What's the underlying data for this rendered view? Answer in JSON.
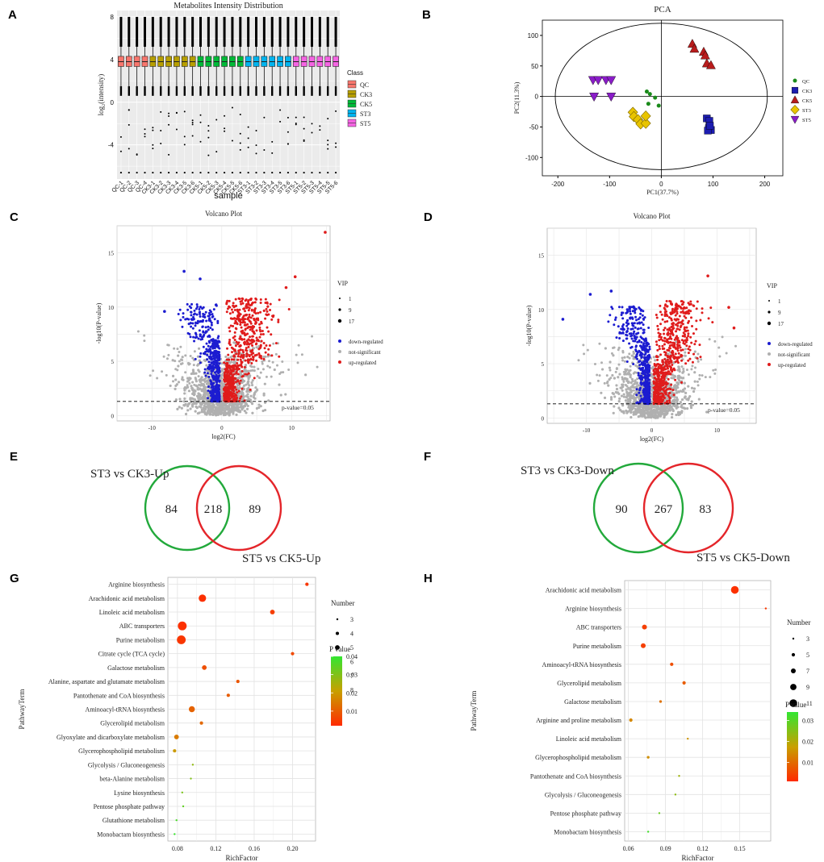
{
  "panel_labels": [
    "A",
    "B",
    "C",
    "D",
    "E",
    "F",
    "G",
    "H"
  ],
  "chart_data": [
    {
      "panel": "A",
      "type": "box",
      "title": "Metabolites Intensity Distribution",
      "xlabel": "sample",
      "ylabel": "log₂(intensity)",
      "ylim": [
        -7.2,
        8.6
      ],
      "yticks": [
        -4,
        0,
        4,
        8
      ],
      "legend_title": "Class",
      "classes": [
        {
          "name": "QC",
          "color": "#f8766d",
          "count": 4
        },
        {
          "name": "CK3",
          "color": "#b79f00",
          "count": 6
        },
        {
          "name": "CK5",
          "color": "#00ba38",
          "count": 6
        },
        {
          "name": "ST3",
          "color": "#00b4ef",
          "count": 6
        },
        {
          "name": "ST5",
          "color": "#f564e3",
          "count": 6
        }
      ],
      "samples": [
        "QC-1",
        "QC-2",
        "QC-3",
        "QC-4",
        "CK3-1",
        "CK3-2",
        "CK3-3",
        "CK3-4",
        "CK3-5",
        "CK3-6",
        "CK5-1",
        "CK5-2",
        "CK5-3",
        "CK5-4",
        "CK5-5",
        "CK5-6",
        "ST3-1",
        "ST3-2",
        "ST3-3",
        "ST3-4",
        "ST3-5",
        "ST3-6",
        "ST5-1",
        "ST5-2",
        "ST5-3",
        "ST5-4",
        "ST5-5",
        "ST5-6"
      ],
      "median": 3.8,
      "q1": 3.35,
      "q3": 4.3,
      "whisker_low": 1.5,
      "whisker_high": 8.0,
      "outlier_min": -6.6
    },
    {
      "panel": "B",
      "type": "scatter",
      "title": "PCA",
      "xlabel": "PC1(37.7%)",
      "ylabel": "PC2(11.3%)",
      "xlim": [
        -230,
        235
      ],
      "ylim": [
        -130,
        125
      ],
      "xticks": [
        -200,
        -100,
        0,
        100,
        200
      ],
      "yticks": [
        -100,
        -50,
        0,
        50,
        100
      ],
      "ellipse": {
        "rx": 205,
        "ry": 120
      },
      "series": [
        {
          "name": "QC",
          "color": "#1a8a1a",
          "marker": "circle",
          "points": [
            [
              -28,
              8
            ],
            [
              -22,
              4
            ],
            [
              -12,
              -2
            ],
            [
              -5,
              -15
            ],
            [
              -25,
              -12
            ]
          ]
        },
        {
          "name": "CK3",
          "color": "#1c1cb0",
          "marker": "square",
          "points": [
            [
              88,
              -36
            ],
            [
              93,
              -40
            ],
            [
              92,
              -52
            ],
            [
              96,
              -55
            ],
            [
              90,
              -56
            ],
            [
              94,
              -48
            ]
          ]
        },
        {
          "name": "CK5",
          "color": "#b81c1c",
          "marker": "triangle",
          "points": [
            [
              60,
              86
            ],
            [
              64,
              78
            ],
            [
              82,
              73
            ],
            [
              85,
              67
            ],
            [
              88,
              54
            ],
            [
              96,
              51
            ]
          ]
        },
        {
          "name": "ST3",
          "color": "#e8c400",
          "marker": "diamond",
          "points": [
            [
              -55,
              -26
            ],
            [
              -53,
              -33
            ],
            [
              -45,
              -38
            ],
            [
              -40,
              -45
            ],
            [
              -30,
              -44
            ],
            [
              -30,
              -32
            ]
          ]
        },
        {
          "name": "ST5",
          "color": "#8a1cc8",
          "marker": "triangle-down",
          "points": [
            [
              -132,
              27
            ],
            [
              -122,
              27
            ],
            [
              -107,
              27
            ],
            [
              -97,
              27
            ],
            [
              -130,
              0
            ],
            [
              -97,
              0
            ]
          ]
        }
      ]
    },
    {
      "panel": "C",
      "type": "scatter",
      "title": "Volcano Plot",
      "xlabel": "log2(FC)",
      "ylabel": "-log10(P-value)",
      "xlim": [
        -15,
        15.5
      ],
      "ylim": [
        -0.5,
        17.5
      ],
      "xticks": [
        -10,
        0,
        10
      ],
      "yticks": [
        0,
        5,
        10,
        15
      ],
      "threshold_label": "p-value=0.05",
      "threshold": 1.3,
      "legend": [
        {
          "name": "down-regulated",
          "color": "#1c1cd0"
        },
        {
          "name": "not-significant",
          "color": "#b0b0b0"
        },
        {
          "name": "up-regulated",
          "color": "#e01c1c"
        }
      ],
      "vip_title": "VIP",
      "vip_values": [
        "1",
        "9",
        "17"
      ],
      "outlier_up": [
        [
          14.8,
          16.9
        ],
        [
          10.5,
          12.8
        ],
        [
          9.2,
          11.8
        ]
      ],
      "outlier_down": [
        [
          -5.4,
          13.3
        ],
        [
          -8.2,
          9.6
        ],
        [
          -3.1,
          12.6
        ]
      ]
    },
    {
      "panel": "D",
      "type": "scatter",
      "title": "Volcano Plot",
      "xlabel": "log2(FC)",
      "ylabel": "-log10(P-value)",
      "xlim": [
        -16,
        16
      ],
      "ylim": [
        -0.5,
        17.5
      ],
      "xticks": [
        -10,
        0,
        10
      ],
      "yticks": [
        0,
        5,
        10,
        15
      ],
      "threshold_label": "p-value=0.05",
      "threshold": 1.3,
      "legend": [
        {
          "name": "down-regulated",
          "color": "#1c1cd0"
        },
        {
          "name": "not-significant",
          "color": "#b0b0b0"
        },
        {
          "name": "up-regulated",
          "color": "#e01c1c"
        }
      ],
      "vip_title": "VIP",
      "vip_values": [
        "1",
        "9",
        "17"
      ],
      "outlier_up": [
        [
          11.8,
          10.2
        ],
        [
          12.6,
          8.3
        ],
        [
          8.6,
          13.1
        ]
      ],
      "outlier_down": [
        [
          -13.6,
          9.1
        ],
        [
          -9.4,
          11.4
        ],
        [
          -6.2,
          11.7
        ]
      ]
    },
    {
      "panel": "E",
      "type": "venn",
      "left_label": "ST3 vs CK3-Up",
      "right_label": "ST5 vs CK5-Up",
      "left_only": "84",
      "both": "218",
      "right_only": "89",
      "left_color": "#22a93b",
      "right_color": "#e4252a"
    },
    {
      "panel": "F",
      "type": "venn",
      "left_label": "ST3 vs CK3-Down",
      "right_label": "ST5 vs CK5-Down",
      "left_only": "90",
      "both": "267",
      "right_only": "83",
      "left_color": "#22a93b",
      "right_color": "#e4252a"
    },
    {
      "panel": "G",
      "type": "scatter",
      "xlabel": "RichFactor",
      "ylabel": "PathwayTerm",
      "xlim": [
        0.07,
        0.224
      ],
      "xticks": [
        0.08,
        0.12,
        0.16,
        0.2
      ],
      "xtick_labels": [
        "0.08",
        "0.12",
        "0.16",
        "0.20"
      ],
      "size_title": "Number",
      "size_values": [
        3,
        4,
        5,
        6,
        7,
        8
      ],
      "color_title": "P value",
      "color_range": [
        0.002,
        0.04
      ],
      "color_ticks": [
        "0.04",
        "0.03",
        "0.02",
        "0.01"
      ],
      "pathways": [
        {
          "term": "Arginine biosynthesis",
          "rich": 0.215,
          "number": 4,
          "p": 0.004
        },
        {
          "term": "Arachidonic acid metabolism",
          "rich": 0.106,
          "number": 7,
          "p": 0.003
        },
        {
          "term": "Linoleic acid metabolism",
          "rich": 0.179,
          "number": 5,
          "p": 0.005
        },
        {
          "term": "ABC transporters",
          "rich": 0.085,
          "number": 8,
          "p": 0.003
        },
        {
          "term": "Purine metabolism",
          "rich": 0.084,
          "number": 8,
          "p": 0.004
        },
        {
          "term": "Citrate cycle (TCA cycle)",
          "rich": 0.2,
          "number": 4,
          "p": 0.007
        },
        {
          "term": "Galactose metabolism",
          "rich": 0.108,
          "number": 5,
          "p": 0.008
        },
        {
          "term": "Alanine, aspartate and glutamate metabolism",
          "rich": 0.143,
          "number": 4,
          "p": 0.009
        },
        {
          "term": "Pantothenate and CoA biosynthesis",
          "rich": 0.133,
          "number": 4,
          "p": 0.01
        },
        {
          "term": "Aminoacyl-tRNA biosynthesis",
          "rich": 0.095,
          "number": 6,
          "p": 0.011
        },
        {
          "term": "Glycerolipid metabolism",
          "rich": 0.105,
          "number": 4,
          "p": 0.012
        },
        {
          "term": "Glyoxylate and dicarboxylate metabolism",
          "rich": 0.079,
          "number": 5,
          "p": 0.015
        },
        {
          "term": "Glycerophospholipid metabolism",
          "rich": 0.077,
          "number": 4,
          "p": 0.02
        },
        {
          "term": "Glycolysis / Gluconeogenesis",
          "rich": 0.096,
          "number": 3,
          "p": 0.028
        },
        {
          "term": "beta-Alanine metabolism",
          "rich": 0.094,
          "number": 3,
          "p": 0.03
        },
        {
          "term": "Lysine biosynthesis",
          "rich": 0.085,
          "number": 3,
          "p": 0.031
        },
        {
          "term": "Pentose phosphate pathway",
          "rich": 0.086,
          "number": 3,
          "p": 0.034
        },
        {
          "term": "Glutathione metabolism",
          "rich": 0.079,
          "number": 3,
          "p": 0.037
        },
        {
          "term": "Monobactam biosynthesis",
          "rich": 0.077,
          "number": 3,
          "p": 0.039
        }
      ]
    },
    {
      "panel": "H",
      "type": "scatter",
      "xlabel": "RichFactor",
      "ylabel": "PathwayTerm",
      "xlim": [
        0.057,
        0.175
      ],
      "xticks": [
        0.06,
        0.09,
        0.12,
        0.15
      ],
      "xtick_labels": [
        "0.06",
        "0.09",
        "0.12",
        "0.15"
      ],
      "size_title": "Number",
      "size_values": [
        3,
        5,
        7,
        9,
        11
      ],
      "color_title": "P value",
      "color_range": [
        0.001,
        0.034
      ],
      "color_ticks": [
        "0.03",
        "0.02",
        "0.01"
      ],
      "pathways": [
        {
          "term": "Arachidonic acid metabolism",
          "rich": 0.146,
          "number": 11,
          "p": 0.002
        },
        {
          "term": "Arginine biosynthesis",
          "rich": 0.171,
          "number": 3,
          "p": 0.003
        },
        {
          "term": "ABC transporters",
          "rich": 0.073,
          "number": 7,
          "p": 0.004
        },
        {
          "term": "Purine metabolism",
          "rich": 0.072,
          "number": 7,
          "p": 0.004
        },
        {
          "term": "Aminoacyl-tRNA biosynthesis",
          "rich": 0.095,
          "number": 5,
          "p": 0.006
        },
        {
          "term": "Glycerolipid metabolism",
          "rich": 0.105,
          "number": 5,
          "p": 0.008
        },
        {
          "term": "Galactose metabolism",
          "rich": 0.086,
          "number": 4,
          "p": 0.011
        },
        {
          "term": "Arginine and proline metabolism",
          "rich": 0.062,
          "number": 5,
          "p": 0.014
        },
        {
          "term": "Linoleic acid metabolism",
          "rich": 0.108,
          "number": 3,
          "p": 0.016
        },
        {
          "term": "Glycerophospholipid metabolism",
          "rich": 0.076,
          "number": 4,
          "p": 0.015
        },
        {
          "term": "Pantothenate and CoA biosynthesis",
          "rich": 0.101,
          "number": 3,
          "p": 0.022
        },
        {
          "term": "Glycolysis / Gluconeogenesis",
          "rich": 0.098,
          "number": 3,
          "p": 0.024
        },
        {
          "term": "Pentose phosphate pathway",
          "rich": 0.085,
          "number": 3,
          "p": 0.028
        },
        {
          "term": "Monobactam biosynthesis",
          "rich": 0.076,
          "number": 3,
          "p": 0.032
        }
      ]
    }
  ]
}
